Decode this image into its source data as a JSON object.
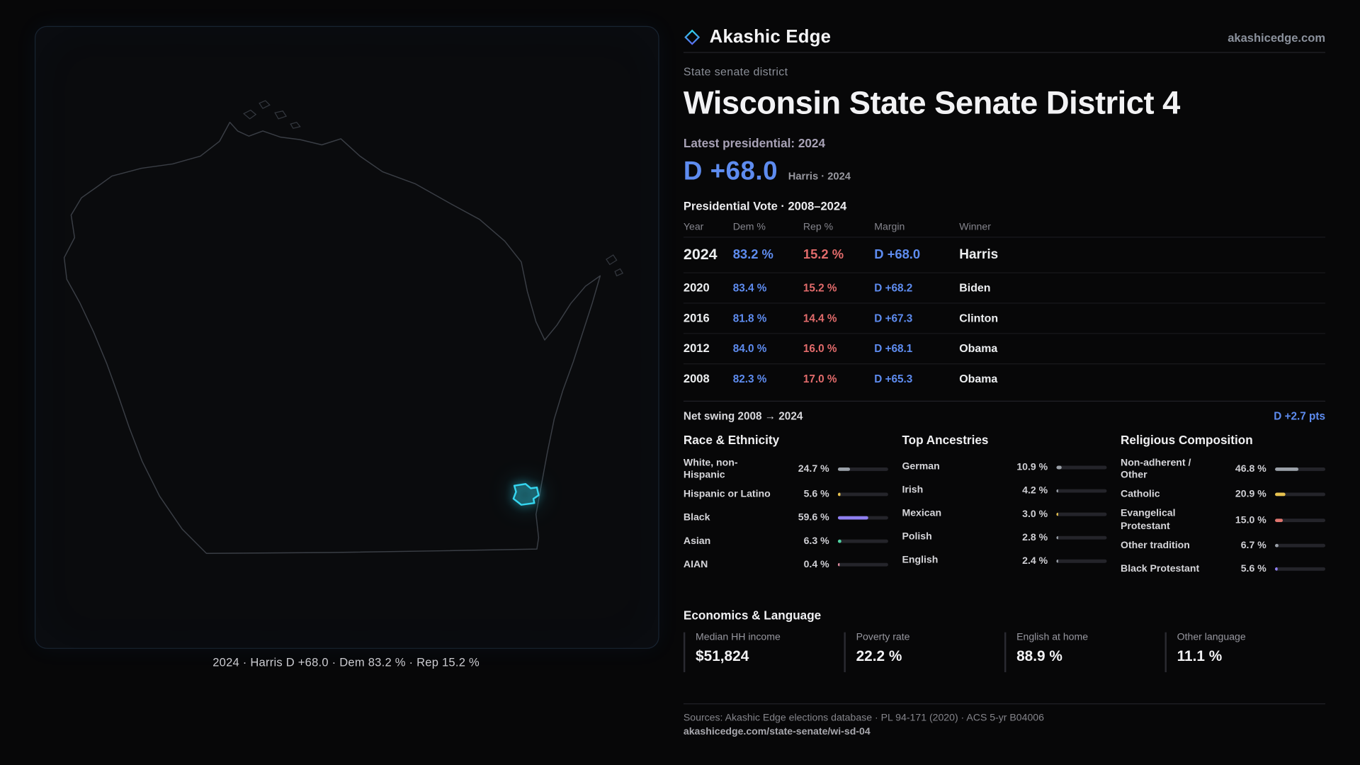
{
  "brand": {
    "name": "Akashic Edge",
    "site": "akashicedge.com",
    "logo_icon": "diamond"
  },
  "kicker": "State senate district",
  "title": "Wisconsin State Senate District 4",
  "latest": {
    "label": "Latest presidential: 2024",
    "margin": "D +68.0",
    "context": "Harris · 2024"
  },
  "map": {
    "caption": "2024 · Harris D +68.0 · Dem 83.2 % · Rep 15.2 %",
    "district_color": "#35D6F0"
  },
  "vote_table": {
    "title": "Presidential Vote · 2008–2024",
    "columns": [
      "Year",
      "Dem %",
      "Rep %",
      "Margin",
      "Winner"
    ],
    "rows": [
      {
        "year": "2024",
        "dem": "83.2 %",
        "rep": "15.2 %",
        "margin": "D +68.0",
        "winner": "Harris",
        "featured": true
      },
      {
        "year": "2020",
        "dem": "83.4 %",
        "rep": "15.2 %",
        "margin": "D +68.2",
        "winner": "Biden",
        "featured": false
      },
      {
        "year": "2016",
        "dem": "81.8 %",
        "rep": "14.4 %",
        "margin": "D +67.3",
        "winner": "Clinton",
        "featured": false
      },
      {
        "year": "2012",
        "dem": "84.0 %",
        "rep": "16.0 %",
        "margin": "D +68.1",
        "winner": "Obama",
        "featured": false
      },
      {
        "year": "2008",
        "dem": "82.3 %",
        "rep": "17.0 %",
        "margin": "D +65.3",
        "winner": "Obama",
        "featured": false
      }
    ]
  },
  "net_swing": {
    "label": "Net swing 2008 → 2024",
    "value": "D +2.7 pts"
  },
  "race": {
    "title": "Race & Ethnicity",
    "items": [
      {
        "label": "White, non-Hispanic",
        "value": "24.7 %",
        "pct": 24.7,
        "color": "#9AA0A8"
      },
      {
        "label": "Hispanic or Latino",
        "value": "5.6 %",
        "pct": 5.6,
        "color": "#E6C14F"
      },
      {
        "label": "Black",
        "value": "59.6 %",
        "pct": 59.6,
        "color": "#8F7FF0"
      },
      {
        "label": "Asian",
        "value": "6.3 %",
        "pct": 6.3,
        "color": "#4FD1A1"
      },
      {
        "label": "AIAN",
        "value": "0.4 %",
        "pct": 0.4,
        "color": "#E08CA0"
      }
    ]
  },
  "ancestries": {
    "title": "Top Ancestries",
    "items": [
      {
        "label": "German",
        "value": "10.9 %",
        "pct": 10.9,
        "color": "#9AA0A8"
      },
      {
        "label": "Irish",
        "value": "4.2 %",
        "pct": 4.2,
        "color": "#9AA0A8"
      },
      {
        "label": "Mexican",
        "value": "3.0 %",
        "pct": 3.0,
        "color": "#E6C14F"
      },
      {
        "label": "Polish",
        "value": "2.8 %",
        "pct": 2.8,
        "color": "#9AA0A8"
      },
      {
        "label": "English",
        "value": "2.4 %",
        "pct": 2.4,
        "color": "#9AA0A8"
      }
    ]
  },
  "religion": {
    "title": "Religious Composition",
    "items": [
      {
        "label": "Non-adherent / Other",
        "value": "46.8 %",
        "pct": 46.8,
        "color": "#9AA0A8"
      },
      {
        "label": "Catholic",
        "value": "20.9 %",
        "pct": 20.9,
        "color": "#E6C14F"
      },
      {
        "label": "Evangelical Protestant",
        "value": "15.0 %",
        "pct": 15.0,
        "color": "#E0766F"
      },
      {
        "label": "Other tradition",
        "value": "6.7 %",
        "pct": 6.7,
        "color": "#9AA0A8"
      },
      {
        "label": "Black Protestant",
        "value": "5.6 %",
        "pct": 5.6,
        "color": "#8F7FF0"
      }
    ]
  },
  "economics": {
    "title": "Economics & Language",
    "stats": [
      {
        "label": "Median HH income",
        "value": "$51,824"
      },
      {
        "label": "Poverty rate",
        "value": "22.2 %"
      },
      {
        "label": "English at home",
        "value": "88.9 %"
      },
      {
        "label": "Other language",
        "value": "11.1 %"
      }
    ]
  },
  "footer": {
    "sources": "Sources: Akashic Edge elections database · PL 94-171 (2020) · ACS 5-yr B04006",
    "permalink": "akashicedge.com/state-senate/wi-sd-04"
  },
  "chart_data": {
    "type": "table",
    "title": "Presidential Vote · 2008–2024",
    "columns": [
      "Year",
      "Dem %",
      "Rep %",
      "Margin",
      "Winner"
    ],
    "rows": [
      [
        2024,
        83.2,
        15.2,
        68.0,
        "Harris"
      ],
      [
        2020,
        83.4,
        15.2,
        68.2,
        "Biden"
      ],
      [
        2016,
        81.8,
        14.4,
        67.3,
        "Clinton"
      ],
      [
        2012,
        84.0,
        16.0,
        68.1,
        "Obama"
      ],
      [
        2008,
        82.3,
        17.0,
        65.3,
        "Obama"
      ]
    ],
    "net_swing_pts": 2.7
  }
}
